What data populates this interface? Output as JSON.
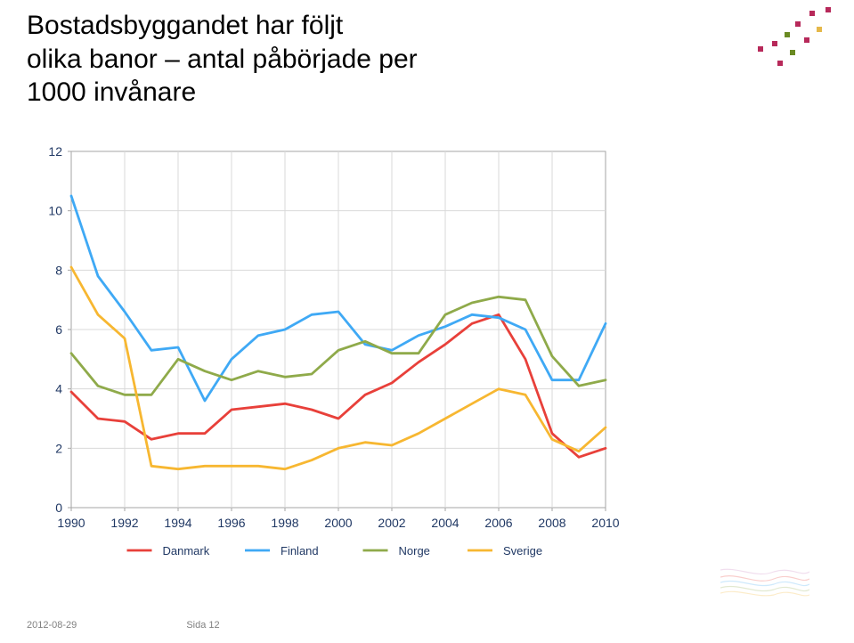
{
  "title_line1": "Bostadsbyggandet har följt",
  "title_line2": "olika banor – antal påbörjade per",
  "title_line3": "1000 invånare",
  "footer_date": "2012-08-29",
  "footer_page": "Sida 12",
  "chart": {
    "type": "line",
    "background_color": "#ffffff",
    "plot_border_color": "#a6a6a6",
    "grid_color": "#d9d9d9",
    "axis_text_color": "#203864",
    "axis_fontsize": 14,
    "line_width": 2.8,
    "x_categories": [
      "1990",
      "1992",
      "1994",
      "1996",
      "1998",
      "2000",
      "2002",
      "2004",
      "2006",
      "2008",
      "2010"
    ],
    "x_tick_every": 2,
    "ylim": [
      0,
      12
    ],
    "ytick_step": 2,
    "series": [
      {
        "name": "Danmark",
        "color": "#e8403a",
        "values_by_year": {
          "1990": 3.9,
          "1991": 3.0,
          "1992": 2.9,
          "1993": 2.3,
          "1994": 2.5,
          "1995": 2.5,
          "1996": 3.3,
          "1997": 3.4,
          "1998": 3.5,
          "1999": 3.3,
          "2000": 3.0,
          "2001": 3.8,
          "2002": 4.2,
          "2003": 4.9,
          "2004": 5.5,
          "2005": 6.2,
          "2006": 6.5,
          "2007": 5.0,
          "2008": 2.5,
          "2009": 1.7,
          "2010": 2.0
        }
      },
      {
        "name": "Finland",
        "color": "#3fa9f5",
        "values_by_year": {
          "1990": 10.5,
          "1991": 7.8,
          "1992": 6.6,
          "1993": 5.3,
          "1994": 5.4,
          "1995": 3.6,
          "1996": 5.0,
          "1997": 5.8,
          "1998": 6.0,
          "1999": 6.5,
          "2000": 6.6,
          "2001": 5.5,
          "2002": 5.3,
          "2003": 5.8,
          "2004": 6.1,
          "2005": 6.5,
          "2006": 6.4,
          "2007": 6.0,
          "2008": 4.3,
          "2009": 4.3,
          "2010": 6.2
        }
      },
      {
        "name": "Norge",
        "color": "#8faa4a",
        "values_by_year": {
          "1990": 5.2,
          "1991": 4.1,
          "1992": 3.8,
          "1993": 3.8,
          "1994": 5.0,
          "1995": 4.6,
          "1996": 4.3,
          "1997": 4.6,
          "1998": 4.4,
          "1999": 4.5,
          "2000": 5.3,
          "2001": 5.6,
          "2002": 5.2,
          "2003": 5.2,
          "2004": 6.5,
          "2005": 6.9,
          "2006": 7.1,
          "2007": 7.0,
          "2008": 5.1,
          "2009": 4.1,
          "2010": 4.3
        }
      },
      {
        "name": "Sverige",
        "color": "#f7b731",
        "values_by_year": {
          "1990": 8.1,
          "1991": 6.5,
          "1992": 5.7,
          "1993": 1.4,
          "1994": 1.3,
          "1995": 1.4,
          "1996": 1.4,
          "1997": 1.4,
          "1998": 1.3,
          "1999": 1.6,
          "2000": 2.0,
          "2001": 2.2,
          "2002": 2.1,
          "2003": 2.5,
          "2004": 3.0,
          "2005": 3.5,
          "2006": 4.0,
          "2007": 3.8,
          "2008": 2.3,
          "2009": 1.9,
          "2010": 2.7
        }
      }
    ],
    "legend": {
      "position": "bottom",
      "fontsize": 13,
      "text_color": "#203864"
    }
  },
  "corner_dots": {
    "colors": [
      "#b7295a",
      "#b7295a",
      "#b7295a",
      "#e5b84a",
      "#6a8a22",
      "#b7295a",
      "#b7295a",
      "#6a8a22",
      "#b7295a",
      "#b7295a"
    ],
    "positions": [
      [
        88,
        4
      ],
      [
        106,
        0
      ],
      [
        72,
        16
      ],
      [
        96,
        22
      ],
      [
        60,
        28
      ],
      [
        82,
        34
      ],
      [
        46,
        38
      ],
      [
        66,
        48
      ],
      [
        30,
        44
      ],
      [
        52,
        60
      ]
    ]
  },
  "mini_deco_colors": [
    "#c97fbf",
    "#e8403a",
    "#3fa9f5",
    "#8faa4a",
    "#f7b731"
  ]
}
